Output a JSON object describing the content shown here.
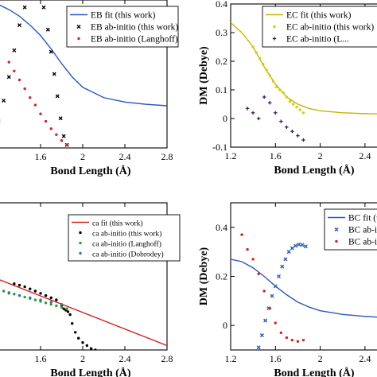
{
  "chart_data": [
    {
      "type": "line",
      "panel": "top-left",
      "xlabel": "Bond Length (Å)",
      "ylabel": "",
      "xlim": [
        1.2,
        2.8
      ],
      "ylim": [
        0,
        1.0
      ],
      "xticks": [
        1.6,
        2,
        2.4,
        2.8
      ],
      "yticks": [],
      "grid": false,
      "legend_position": "top-right",
      "series": [
        {
          "name": "EB fit (this work)",
          "style": "line",
          "color": "#2a56c6",
          "x": [
            1.2,
            1.3,
            1.4,
            1.5,
            1.6,
            1.7,
            1.8,
            1.9,
            2.0,
            2.2,
            2.4,
            2.6,
            2.8
          ],
          "y": [
            0.97,
            0.935,
            0.89,
            0.83,
            0.76,
            0.67,
            0.57,
            0.48,
            0.41,
            0.34,
            0.31,
            0.295,
            0.285
          ]
        },
        {
          "name": "EB ab-initio (this work)",
          "style": "x",
          "color": "#000000",
          "x": [
            1.2,
            1.25,
            1.3,
            1.35,
            1.4,
            1.45,
            1.5,
            1.55,
            1.58,
            1.6,
            1.63,
            1.67,
            1.7,
            1.73,
            1.76,
            1.79,
            1.82,
            1.85
          ],
          "y": [
            0.18,
            0.32,
            0.48,
            0.66,
            0.83,
            0.95,
            1.02,
            1.05,
            1.04,
            1.02,
            0.95,
            0.8,
            0.65,
            0.5,
            0.35,
            0.2,
            0.08,
            0.02
          ]
        },
        {
          "name": "EB ab-initio (Langhoff)",
          "style": "dot",
          "color": "#e02020",
          "x": [
            1.3,
            1.35,
            1.4,
            1.45,
            1.5,
            1.55,
            1.6,
            1.65,
            1.7,
            1.75,
            1.8,
            1.85
          ],
          "y": [
            0.58,
            0.52,
            0.46,
            0.4,
            0.34,
            0.29,
            0.23,
            0.18,
            0.13,
            0.09,
            0.05,
            0.02
          ]
        }
      ]
    },
    {
      "type": "line",
      "panel": "top-right",
      "xlabel": "Bond Length (Å)",
      "ylabel": "DM (Debye)",
      "xlim": [
        1.2,
        2.55
      ],
      "ylim": [
        -0.1,
        0.4
      ],
      "xticks": [
        1.2,
        1.6,
        2,
        2.4
      ],
      "xticklabels": [
        "1.2",
        "1.6",
        "2",
        "2.4"
      ],
      "yticks": [
        -0.1,
        0,
        0.1,
        0.2,
        0.3,
        0.4
      ],
      "grid": false,
      "legend_position": "top-right",
      "series": [
        {
          "name": "EC fit (this work)",
          "style": "line",
          "color": "#c8b400",
          "x": [
            1.2,
            1.3,
            1.4,
            1.5,
            1.6,
            1.7,
            1.8,
            1.9,
            2.0,
            2.2,
            2.4,
            2.55
          ],
          "y": [
            0.335,
            0.3,
            0.25,
            0.18,
            0.12,
            0.075,
            0.05,
            0.035,
            0.027,
            0.02,
            0.017,
            0.016
          ]
        },
        {
          "name": "EC ab-initio (this work)",
          "style": "dot",
          "color": "#d8cc00",
          "x": [
            1.4,
            1.43,
            1.46,
            1.49,
            1.52,
            1.55,
            1.58,
            1.61,
            1.64,
            1.67,
            1.7,
            1.73,
            1.76,
            1.79,
            1.82,
            1.85
          ],
          "y": [
            0.25,
            0.23,
            0.21,
            0.19,
            0.17,
            0.15,
            0.13,
            0.11,
            0.1,
            0.09,
            0.075,
            0.06,
            0.05,
            0.04,
            0.03,
            0.02
          ]
        },
        {
          "name": "EC ab-initio (L...",
          "style": "plus",
          "color": "#40186a",
          "x": [
            1.35,
            1.4,
            1.45,
            1.5,
            1.55,
            1.6,
            1.65,
            1.7,
            1.75,
            1.8,
            1.85
          ],
          "y": [
            0.035,
            0.02,
            0.0,
            0.075,
            0.055,
            0.02,
            -0.01,
            -0.03,
            -0.045,
            -0.06,
            -0.075
          ]
        }
      ]
    },
    {
      "type": "line",
      "panel": "bottom-left",
      "xlabel": "Bond Length (Å)",
      "ylabel": "",
      "xlim": [
        1.2,
        2.8
      ],
      "ylim": [
        0,
        1.0
      ],
      "xticks": [
        1.6,
        2,
        2.4,
        2.8
      ],
      "yticks": [],
      "grid": false,
      "legend_position": "top-right",
      "series": [
        {
          "name": "ca fit (this work)",
          "style": "line",
          "color": "#d42020",
          "x": [
            1.2,
            2.8
          ],
          "y": [
            0.48,
            0.03
          ]
        },
        {
          "name": "ca ab-initio (this work)",
          "style": "dot",
          "color": "#000000",
          "x": [
            1.35,
            1.4,
            1.45,
            1.5,
            1.55,
            1.6,
            1.65,
            1.7,
            1.75,
            1.8,
            1.82,
            1.84,
            1.86,
            1.88,
            1.9,
            1.93,
            1.96,
            2.0,
            2.04,
            2.08,
            2.12
          ],
          "y": [
            0.45,
            0.44,
            0.43,
            0.415,
            0.4,
            0.385,
            0.37,
            0.355,
            0.34,
            0.3,
            0.28,
            0.27,
            0.26,
            0.24,
            0.18,
            0.12,
            0.08,
            0.05,
            0.03,
            0.01,
            0.0
          ]
        },
        {
          "name": "ca ab-initio (Langhoff)",
          "style": "dot",
          "color": "#2aa02a",
          "x": [
            1.25,
            1.3,
            1.35,
            1.4,
            1.45,
            1.5,
            1.55,
            1.6,
            1.65,
            1.7,
            1.75,
            1.8,
            1.85
          ],
          "y": [
            0.4,
            0.39,
            0.38,
            0.37,
            0.36,
            0.35,
            0.34,
            0.33,
            0.32,
            0.31,
            0.3,
            0.29,
            0.28
          ]
        },
        {
          "name": "ca ab-initio (Dobrodey)",
          "style": "dot",
          "color": "#2a7aa6",
          "x": [
            1.2,
            1.3,
            1.4,
            1.5,
            1.6,
            1.7,
            1.8
          ],
          "y": [
            0.4,
            0.385,
            0.37,
            0.355,
            0.34,
            0.325,
            0.31
          ]
        }
      ]
    },
    {
      "type": "line",
      "panel": "bottom-right",
      "xlabel": "Bond Length (Å)",
      "ylabel": "DM (Debye)",
      "xlim": [
        1.2,
        2.55
      ],
      "ylim": [
        -0.1,
        0.5
      ],
      "xticks": [
        1.2,
        1.6,
        2,
        2.4
      ],
      "xticklabels": [
        "1.2",
        "1.6",
        "2",
        "2.4"
      ],
      "yticks": [
        0,
        0.2,
        0.4
      ],
      "grid": false,
      "legend_position": "top-right",
      "series": [
        {
          "name": "BC fit (this work)",
          "style": "line",
          "color": "#2a56c6",
          "x": [
            1.2,
            1.3,
            1.4,
            1.5,
            1.6,
            1.7,
            1.8,
            1.9,
            2.0,
            2.2,
            2.4,
            2.55
          ],
          "y": [
            0.27,
            0.26,
            0.235,
            0.2,
            0.16,
            0.125,
            0.095,
            0.075,
            0.06,
            0.045,
            0.037,
            0.033
          ]
        },
        {
          "name": "BC ab-initio ...",
          "style": "x",
          "color": "#2a56c6",
          "x": [
            1.45,
            1.48,
            1.51,
            1.54,
            1.57,
            1.6,
            1.63,
            1.66,
            1.69,
            1.72,
            1.75,
            1.78,
            1.81,
            1.84,
            1.87
          ],
          "y": [
            -0.09,
            -0.04,
            0.02,
            0.07,
            0.12,
            0.16,
            0.2,
            0.24,
            0.27,
            0.3,
            0.315,
            0.325,
            0.33,
            0.328,
            0.322
          ]
        },
        {
          "name": "BC ab-initio ...",
          "style": "dot",
          "color": "#e02020",
          "x": [
            1.3,
            1.35,
            1.4,
            1.45,
            1.5,
            1.55,
            1.6,
            1.65,
            1.7,
            1.75,
            1.8,
            1.85
          ],
          "y": [
            0.37,
            0.31,
            0.27,
            0.21,
            0.14,
            0.07,
            0.01,
            -0.03,
            -0.05,
            -0.06,
            -0.065,
            -0.06
          ]
        }
      ]
    }
  ]
}
